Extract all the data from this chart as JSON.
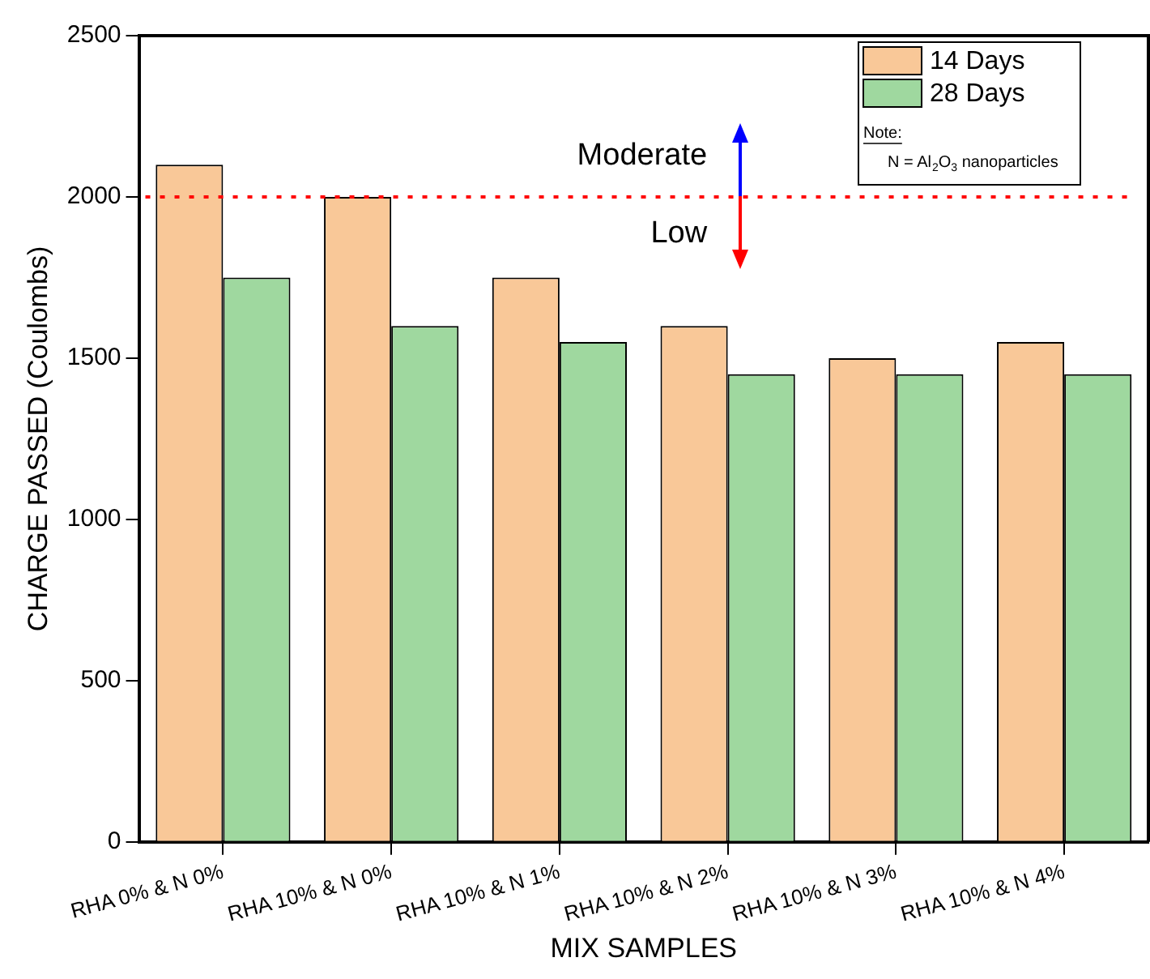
{
  "chart_data": {
    "type": "bar",
    "xlabel": "MIX SAMPLES",
    "ylabel": "CHARGE PASSED (Coulombs)",
    "categories": [
      "RHA 0% & N 0%",
      "RHA 10% & N 0%",
      "RHA 10% & N 1%",
      "RHA 10% & N 2%",
      "RHA 10% & N 3%",
      "RHA 10% & N 4%"
    ],
    "series": [
      {
        "name": "14 Days",
        "color": "#f9c898",
        "values": [
          2100,
          2000,
          1750,
          1600,
          1500,
          1550
        ]
      },
      {
        "name": "28 Days",
        "color": "#9fd89f",
        "values": [
          1750,
          1600,
          1550,
          1450,
          1450,
          1450
        ]
      }
    ],
    "ylim": [
      0,
      2500
    ],
    "yticks": [
      0,
      500,
      1000,
      1500,
      2000,
      2500
    ],
    "grid": false,
    "legend": "top right",
    "ref_lines": [
      {
        "axis": "y",
        "value": 2000,
        "color": "#ff0000",
        "line_style": "dotted"
      }
    ],
    "annotations": [
      "Moderate",
      "Low",
      "Note:",
      "N = Al$_{2}$O$_{3}$ nanoparticles"
    ]
  }
}
